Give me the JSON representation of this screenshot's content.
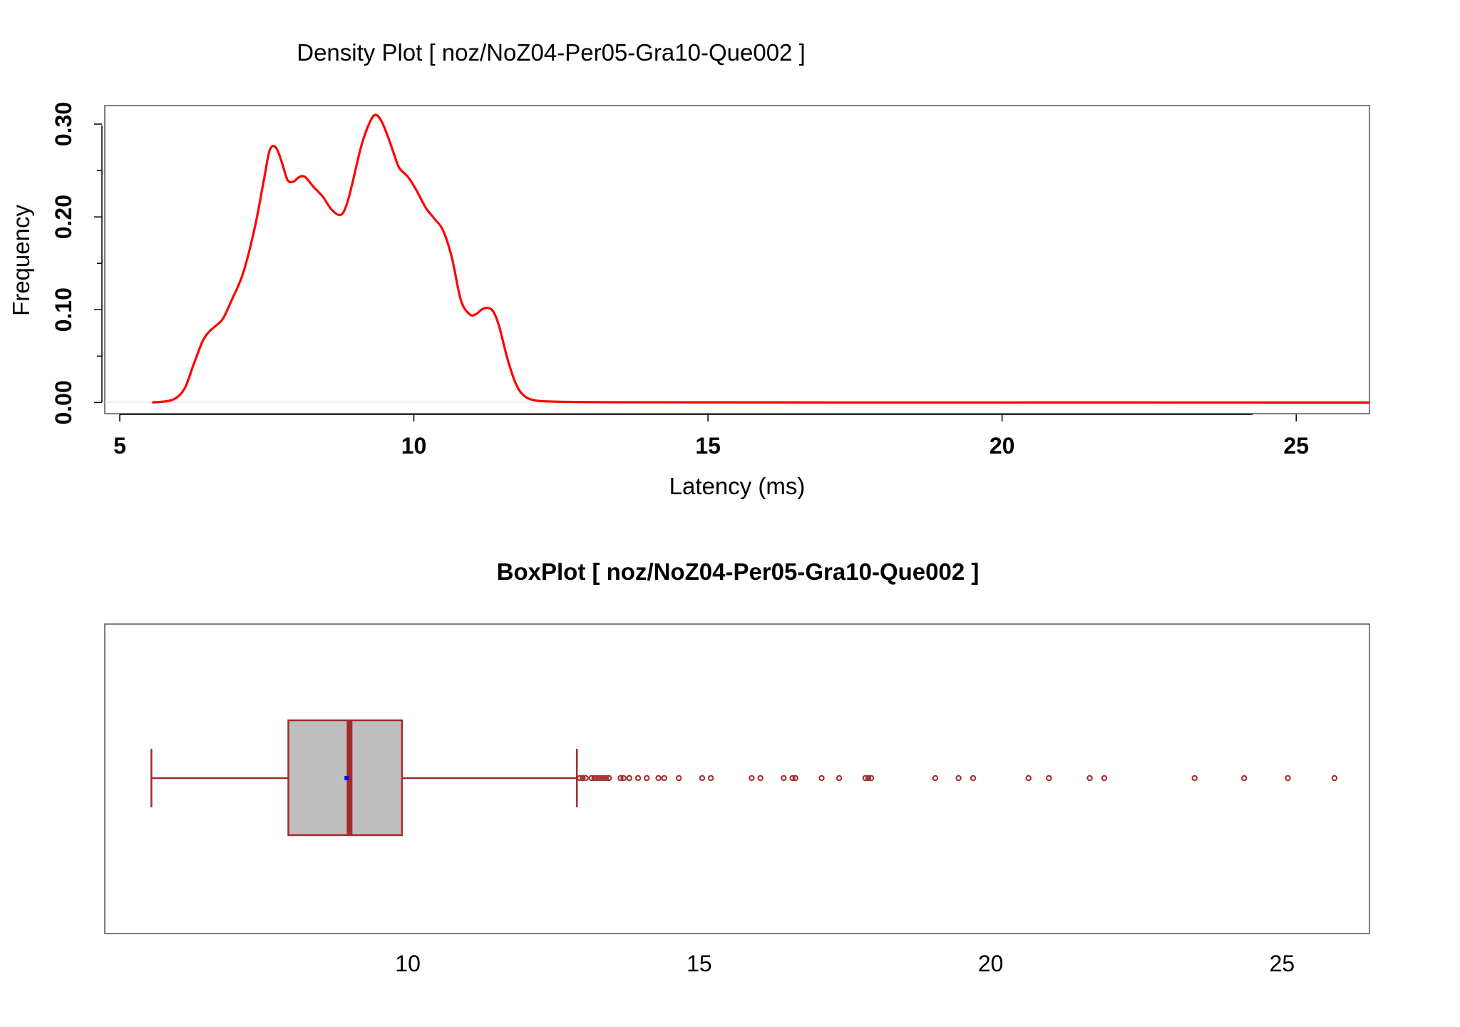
{
  "chart_data": [
    {
      "type": "line",
      "title": "Density Plot [ noz/NoZ04-Per05-Gra10-Que002 ]",
      "xlabel": "Latency (ms)",
      "ylabel": "Frequency",
      "xlim": [
        5,
        26.5
      ],
      "ylim": [
        -0.012,
        0.32
      ],
      "x_ticks": [
        "5",
        "10",
        "15",
        "20",
        "25"
      ],
      "y_ticks": [
        "0.00",
        "0.10",
        "0.20",
        "0.30"
      ],
      "grid": false,
      "line_color": "#ff0000",
      "series": [
        {
          "x": [
            5.55,
            5.9,
            6.1,
            6.25,
            6.4,
            6.5,
            6.6,
            6.75,
            6.9,
            7.1,
            7.3,
            7.45,
            7.55,
            7.65,
            7.75,
            7.85,
            7.95,
            8.05,
            8.15,
            8.3,
            8.45,
            8.6,
            8.75,
            8.85,
            8.95,
            9.1,
            9.25,
            9.35,
            9.45,
            9.55,
            9.65,
            9.75,
            9.9,
            10.05,
            10.2,
            10.35,
            10.5,
            10.65,
            10.8,
            10.95,
            11.05,
            11.15,
            11.25,
            11.35,
            11.45,
            11.6,
            11.75,
            11.9,
            12.1,
            12.4,
            12.8,
            13.5,
            15.0,
            17.0,
            20.0,
            23.0,
            26.25
          ],
          "y": [
            0.0,
            0.003,
            0.015,
            0.04,
            0.065,
            0.075,
            0.081,
            0.09,
            0.11,
            0.14,
            0.19,
            0.24,
            0.272,
            0.275,
            0.26,
            0.24,
            0.238,
            0.243,
            0.243,
            0.232,
            0.222,
            0.208,
            0.202,
            0.212,
            0.235,
            0.275,
            0.302,
            0.31,
            0.303,
            0.288,
            0.27,
            0.253,
            0.243,
            0.228,
            0.21,
            0.198,
            0.185,
            0.155,
            0.11,
            0.095,
            0.095,
            0.1,
            0.102,
            0.098,
            0.082,
            0.045,
            0.018,
            0.006,
            0.002,
            0.001,
            0.0005,
            0.0003,
            0.0002,
            0.0001,
            0.0001,
            0.0001,
            0.0
          ]
        }
      ]
    },
    {
      "type": "boxplot",
      "title": "BoxPlot [ noz/NoZ04-Per05-Gra10-Que002 ]",
      "x_ticks": [
        "10",
        "15",
        "20",
        "25"
      ],
      "xlim": [
        4.8,
        26.5
      ],
      "box_fill": "#bebebe",
      "stroke_color": "#a52a2a",
      "mean_color": "#0000ff",
      "stats": {
        "whisker_low": 5.6,
        "q1": 7.95,
        "median": 9.0,
        "mean": 8.95,
        "q3": 9.9,
        "whisker_high": 12.9
      },
      "outliers": [
        12.95,
        13.0,
        13.05,
        13.15,
        13.2,
        13.25,
        13.3,
        13.35,
        13.4,
        13.45,
        13.65,
        13.7,
        13.8,
        13.95,
        14.1,
        14.3,
        14.4,
        14.65,
        15.05,
        15.2,
        15.9,
        16.05,
        16.45,
        16.6,
        16.65,
        17.1,
        17.4,
        17.85,
        17.9,
        17.95,
        19.05,
        19.45,
        19.7,
        20.65,
        21.0,
        21.7,
        21.95,
        23.5,
        24.35,
        25.1,
        25.9
      ]
    }
  ]
}
